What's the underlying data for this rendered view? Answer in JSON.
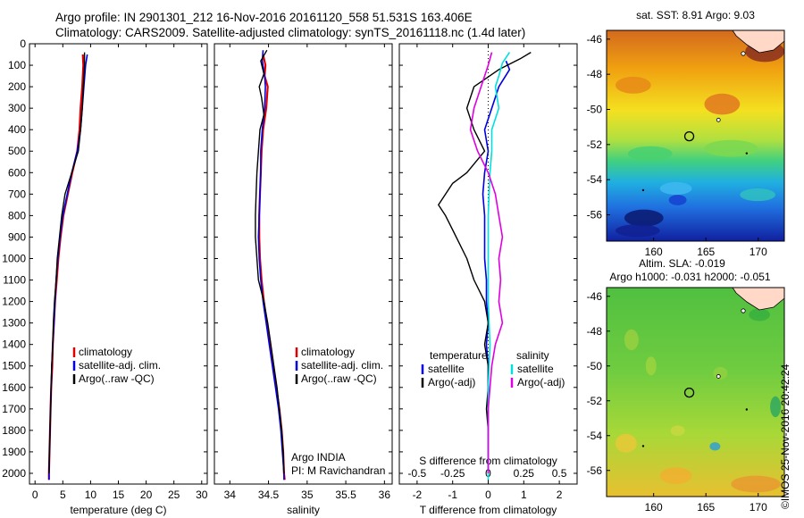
{
  "header": {
    "line1": "Argo profile: IN 2901301_212 16-Nov-2016 20161120_558 51.531S 163.406E",
    "line2": "Climatology: CARS2009. Satellite-adjusted climatology: synTS_20161118.nc (1.4d later)"
  },
  "stamp": "©IMOS 25-Nov-2016 20:42:24",
  "colors": {
    "climatology": "#e00000",
    "satellite": "#0000e0",
    "argo": "#000000",
    "cyan": "#00e0e0",
    "magenta": "#e000e0"
  },
  "chart_data": [
    {
      "type": "line",
      "name": "temperature-panel",
      "xlabel": "temperature (deg C)",
      "ylabel": "",
      "xlim": [
        -1,
        31
      ],
      "ylim": [
        0,
        2050
      ],
      "y_inverted": true,
      "xticks": [
        "0",
        "5",
        "10",
        "15",
        "20",
        "25",
        "30"
      ],
      "yticks": [
        "0",
        "100",
        "200",
        "300",
        "400",
        "500",
        "600",
        "700",
        "800",
        "900",
        "1000",
        "1100",
        "1200",
        "1300",
        "1400",
        "1500",
        "1600",
        "1700",
        "1800",
        "1900",
        "2000"
      ],
      "legend": {
        "position": "lower-center",
        "entries": [
          "climatology",
          "satellite-adj. clim.",
          "Argo(..raw -QC)"
        ]
      },
      "series": [
        {
          "name": "climatology",
          "color": "#e00000",
          "width": 2.2,
          "points": [
            [
              8.6,
              50
            ],
            [
              8.7,
              100
            ],
            [
              8.5,
              200
            ],
            [
              8.2,
              300
            ],
            [
              8.0,
              400
            ],
            [
              7.6,
              500
            ],
            [
              6.7,
              600
            ],
            [
              5.9,
              700
            ],
            [
              5.1,
              800
            ],
            [
              4.6,
              900
            ],
            [
              4.2,
              1000
            ],
            [
              3.9,
              1100
            ],
            [
              3.6,
              1200
            ],
            [
              3.4,
              1300
            ],
            [
              3.2,
              1400
            ],
            [
              3.1,
              1500
            ],
            [
              2.9,
              1600
            ],
            [
              2.8,
              1700
            ],
            [
              2.7,
              1800
            ],
            [
              2.6,
              1900
            ],
            [
              2.5,
              2000
            ],
            [
              2.5,
              2030
            ]
          ]
        },
        {
          "name": "satellite-adj. clim.",
          "color": "#0000e0",
          "width": 1.6,
          "points": [
            [
              9.4,
              50
            ],
            [
              9.1,
              100
            ],
            [
              8.8,
              200
            ],
            [
              8.5,
              300
            ],
            [
              8.2,
              400
            ],
            [
              7.6,
              500
            ],
            [
              6.6,
              600
            ],
            [
              5.8,
              700
            ],
            [
              5.0,
              800
            ],
            [
              4.5,
              900
            ],
            [
              4.1,
              1000
            ],
            [
              3.8,
              1100
            ],
            [
              3.6,
              1200
            ],
            [
              3.4,
              1300
            ],
            [
              3.2,
              1400
            ],
            [
              3.0,
              1500
            ],
            [
              2.9,
              1600
            ],
            [
              2.8,
              1700
            ],
            [
              2.7,
              1800
            ],
            [
              2.6,
              1900
            ],
            [
              2.5,
              2000
            ],
            [
              2.5,
              2030
            ]
          ]
        },
        {
          "name": "Argo(..raw -QC)",
          "color": "#000000",
          "width": 1.4,
          "points": [
            [
              8.9,
              40
            ],
            [
              8.9,
              100
            ],
            [
              8.7,
              200
            ],
            [
              8.5,
              300
            ],
            [
              8.2,
              400
            ],
            [
              7.8,
              500
            ],
            [
              6.6,
              600
            ],
            [
              5.4,
              700
            ],
            [
              4.8,
              800
            ],
            [
              4.4,
              900
            ],
            [
              4.0,
              1000
            ],
            [
              3.8,
              1100
            ],
            [
              3.5,
              1200
            ],
            [
              3.3,
              1300
            ],
            [
              3.2,
              1400
            ],
            [
              3.0,
              1500
            ],
            [
              2.9,
              1600
            ],
            [
              2.8,
              1700
            ],
            [
              2.7,
              1800
            ],
            [
              2.6,
              1900
            ],
            [
              2.5,
              2000
            ]
          ]
        }
      ]
    },
    {
      "type": "line",
      "name": "salinity-panel",
      "xlabel": "salinity",
      "xlim": [
        33.8,
        36.1
      ],
      "ylim": [
        0,
        2050
      ],
      "y_inverted": true,
      "xticks": [
        "34",
        "34.5",
        "35",
        "35.5",
        "36"
      ],
      "legend": {
        "position": "lower-center",
        "entries": [
          "climatology",
          "satellite-adj. clim.",
          "Argo(..raw -QC)"
        ]
      },
      "annotation": [
        "Argo INDIA",
        "PI: M Ravichandran"
      ],
      "series": [
        {
          "name": "climatology",
          "color": "#e00000",
          "width": 2.2,
          "points": [
            [
              34.43,
              50
            ],
            [
              34.46,
              100
            ],
            [
              34.45,
              150
            ],
            [
              34.49,
              200
            ],
            [
              34.47,
              300
            ],
            [
              34.43,
              400
            ],
            [
              34.41,
              500
            ],
            [
              34.4,
              600
            ],
            [
              34.39,
              700
            ],
            [
              34.38,
              800
            ],
            [
              34.38,
              900
            ],
            [
              34.39,
              1000
            ],
            [
              34.41,
              1100
            ],
            [
              34.44,
              1200
            ],
            [
              34.48,
              1300
            ],
            [
              34.52,
              1400
            ],
            [
              34.56,
              1500
            ],
            [
              34.6,
              1600
            ],
            [
              34.64,
              1700
            ],
            [
              34.67,
              1800
            ],
            [
              34.69,
              1900
            ],
            [
              34.7,
              2000
            ],
            [
              34.71,
              2030
            ]
          ]
        },
        {
          "name": "satellite-adj. clim.",
          "color": "#0000e0",
          "width": 1.6,
          "points": [
            [
              34.43,
              30
            ],
            [
              34.42,
              80
            ],
            [
              34.45,
              150
            ],
            [
              34.46,
              200
            ],
            [
              34.45,
              300
            ],
            [
              34.42,
              400
            ],
            [
              34.4,
              500
            ],
            [
              34.4,
              600
            ],
            [
              34.39,
              700
            ],
            [
              34.38,
              800
            ],
            [
              34.37,
              900
            ],
            [
              34.38,
              1000
            ],
            [
              34.4,
              1100
            ],
            [
              34.43,
              1200
            ],
            [
              34.47,
              1300
            ],
            [
              34.51,
              1400
            ],
            [
              34.55,
              1500
            ],
            [
              34.59,
              1600
            ],
            [
              34.63,
              1700
            ],
            [
              34.66,
              1800
            ],
            [
              34.68,
              1900
            ],
            [
              34.7,
              2000
            ],
            [
              34.7,
              2030
            ]
          ]
        },
        {
          "name": "Argo(..raw -QC)",
          "color": "#000000",
          "width": 1.4,
          "points": [
            [
              34.48,
              30
            ],
            [
              34.4,
              80
            ],
            [
              34.44,
              140
            ],
            [
              34.38,
              200
            ],
            [
              34.41,
              250
            ],
            [
              34.44,
              330
            ],
            [
              34.39,
              400
            ],
            [
              34.37,
              500
            ],
            [
              34.35,
              600
            ],
            [
              34.34,
              700
            ],
            [
              34.33,
              800
            ],
            [
              34.33,
              900
            ],
            [
              34.35,
              1000
            ],
            [
              34.37,
              1100
            ],
            [
              34.44,
              1200
            ],
            [
              34.49,
              1300
            ],
            [
              34.53,
              1400
            ],
            [
              34.57,
              1500
            ],
            [
              34.61,
              1600
            ],
            [
              34.64,
              1700
            ],
            [
              34.67,
              1800
            ],
            [
              34.69,
              1900
            ],
            [
              34.7,
              2000
            ]
          ]
        }
      ]
    },
    {
      "type": "line",
      "name": "difference-panel",
      "xlabel": "T difference from climatology",
      "top_label": "S difference from climatology",
      "xlim": [
        -2.5,
        2.5
      ],
      "ylim": [
        0,
        2050
      ],
      "y_inverted": true,
      "xticks": [
        "-2",
        "-1",
        "0",
        "1",
        "2"
      ],
      "top_ticks": [
        "-0.5",
        "-0.25",
        "0",
        "0.25",
        "0.5"
      ],
      "legend": {
        "position": "lower-center",
        "columns": [
          {
            "title": "temperature",
            "entries": [
              "satellite",
              "Argo(-adj)"
            ]
          },
          {
            "title": "salinity",
            "entries": [
              "satellite",
              "Argo(-adj)"
            ]
          }
        ]
      },
      "series": [
        {
          "name": "temperature satellite",
          "color": "#0000e0",
          "width": 1.6,
          "points": [
            [
              0.5,
              80
            ],
            [
              0.6,
              120
            ],
            [
              0.3,
              200
            ],
            [
              0.1,
              300
            ],
            [
              -0.1,
              400
            ],
            [
              0.0,
              500
            ],
            [
              -0.1,
              600
            ],
            [
              -0.15,
              700
            ],
            [
              -0.1,
              800
            ],
            [
              -0.1,
              900
            ],
            [
              -0.1,
              1000
            ],
            [
              -0.05,
              1100
            ],
            [
              -0.05,
              1200
            ],
            [
              0.0,
              1300
            ],
            [
              -0.05,
              1400
            ],
            [
              0.0,
              1500
            ],
            [
              0.0,
              1600
            ],
            [
              0.0,
              1700
            ],
            [
              0.0,
              1800
            ],
            [
              0.0,
              1900
            ],
            [
              0.0,
              2000
            ]
          ]
        },
        {
          "name": "temperature Argo(-adj)",
          "color": "#000000",
          "width": 1.4,
          "points": [
            [
              1.2,
              40
            ],
            [
              0.9,
              70
            ],
            [
              0.3,
              120
            ],
            [
              -0.4,
              200
            ],
            [
              -0.6,
              300
            ],
            [
              -0.4,
              400
            ],
            [
              -0.1,
              500
            ],
            [
              -0.6,
              600
            ],
            [
              -1.0,
              650
            ],
            [
              -1.4,
              750
            ],
            [
              -1.2,
              800
            ],
            [
              -0.9,
              900
            ],
            [
              -0.6,
              1000
            ],
            [
              -0.4,
              1100
            ],
            [
              -0.1,
              1200
            ],
            [
              0.0,
              1300
            ],
            [
              -0.1,
              1400
            ],
            [
              0.0,
              1500
            ],
            [
              0.0,
              1600
            ],
            [
              -0.05,
              1700
            ],
            [
              0.0,
              1800
            ]
          ]
        },
        {
          "name": "salinity satellite",
          "color": "#00e0e0",
          "width": 1.6,
          "points": [
            [
              0.6,
              40
            ],
            [
              0.4,
              90
            ],
            [
              0.3,
              150
            ],
            [
              0.2,
              200
            ],
            [
              0.3,
              300
            ],
            [
              0.1,
              400
            ],
            [
              0.1,
              500
            ],
            [
              0.05,
              600
            ],
            [
              0.0,
              800
            ],
            [
              0.0,
              1000
            ],
            [
              0.0,
              1200
            ],
            [
              0.05,
              1400
            ],
            [
              0.0,
              1600
            ],
            [
              0.0,
              1800
            ],
            [
              0.0,
              2030
            ]
          ]
        },
        {
          "name": "salinity Argo(-adj)",
          "color": "#e000e0",
          "width": 1.6,
          "points": [
            [
              0.1,
              40
            ],
            [
              0.0,
              100
            ],
            [
              -0.2,
              200
            ],
            [
              -0.4,
              300
            ],
            [
              -0.5,
              400
            ],
            [
              -0.3,
              500
            ],
            [
              0.0,
              600
            ],
            [
              0.2,
              700
            ],
            [
              0.3,
              800
            ],
            [
              0.4,
              900
            ],
            [
              0.3,
              1000
            ],
            [
              0.35,
              1100
            ],
            [
              0.3,
              1200
            ],
            [
              0.4,
              1300
            ],
            [
              0.2,
              1400
            ],
            [
              0.1,
              1500
            ],
            [
              0.05,
              1600
            ],
            [
              0.0,
              1700
            ],
            [
              0.0,
              1800
            ],
            [
              0.0,
              1900
            ],
            [
              0.0,
              2000
            ]
          ]
        }
      ]
    },
    {
      "type": "heatmap",
      "name": "sst-map",
      "title": "sat. SST: 8.91  Argo: 9.03",
      "xlim": [
        155.5,
        172.5
      ],
      "ylim": [
        -57.5,
        -45.5
      ],
      "xticks": [
        "160",
        "165",
        "170"
      ],
      "yticks": [
        "-46",
        "-48",
        "-50",
        "-52",
        "-54",
        "-56"
      ],
      "marker": {
        "lon": 163.406,
        "lat": -51.531
      }
    },
    {
      "type": "heatmap",
      "name": "sla-map",
      "title": "Altim. SLA: -0.019",
      "subtitle": "Argo h1000: -0.031 h2000: -0.051",
      "xlim": [
        155.5,
        172.5
      ],
      "ylim": [
        -57.5,
        -45.5
      ],
      "xticks": [
        "160",
        "165",
        "170"
      ],
      "yticks": [
        "-46",
        "-48",
        "-50",
        "-52",
        "-54",
        "-56"
      ],
      "marker": {
        "lon": 163.406,
        "lat": -51.531
      }
    }
  ]
}
